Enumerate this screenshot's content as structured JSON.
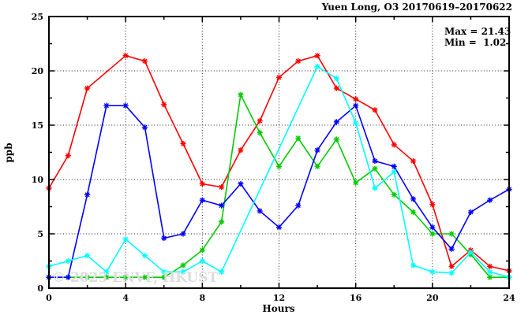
{
  "header": {
    "title": "Yuen Long, O3 20170619–20170622"
  },
  "annotation": {
    "max_label": "Max = 21.43",
    "min_label": "Min =  1.02"
  },
  "watermark": "© 2025 ENVF, HKUST",
  "colors": {
    "red": "#ff0000",
    "green": "#00cc00",
    "blue": "#0000ff",
    "cyan": "#00ffff",
    "grid": "#222222",
    "watermark": "#dcdcdc"
  },
  "chart_data": {
    "type": "line",
    "title": "Yuen Long, O3 20170619–20170622",
    "xlabel": "Hours",
    "ylabel": "ppb",
    "xlim": [
      0,
      24
    ],
    "ylim": [
      0,
      25
    ],
    "grid": true,
    "legend_position": "none",
    "stats": {
      "max": 21.43,
      "min": 1.02
    },
    "x_major_ticks": [
      0,
      4,
      8,
      12,
      16,
      20,
      24
    ],
    "x_minor_ticks": [
      2,
      6,
      10,
      14,
      18,
      22
    ],
    "y_major_ticks": [
      0,
      5,
      10,
      15,
      20,
      25
    ],
    "y_minor_ticks": [
      2.5,
      7.5,
      12.5,
      17.5,
      22.5
    ],
    "x": [
      0,
      1,
      2,
      3,
      4,
      5,
      6,
      7,
      8,
      9,
      10,
      11,
      12,
      13,
      14,
      15,
      16,
      17,
      18,
      19,
      20,
      21,
      22,
      23,
      24
    ],
    "series": [
      {
        "name": "series-red",
        "color": "#ff0000",
        "marker": "asterisk",
        "values": [
          9.2,
          12.2,
          18.4,
          null,
          21.4,
          20.9,
          16.9,
          13.3,
          9.6,
          9.3,
          12.7,
          15.4,
          19.4,
          20.9,
          21.4,
          18.4,
          17.4,
          16.4,
          13.2,
          11.7,
          7.7,
          2.0,
          3.5,
          2.0,
          1.6
        ]
      },
      {
        "name": "series-green",
        "color": "#00cc00",
        "marker": "asterisk",
        "values": [
          1.0,
          1.0,
          1.0,
          1.0,
          1.0,
          1.0,
          1.0,
          2.1,
          3.5,
          6.1,
          17.8,
          14.3,
          11.2,
          13.8,
          11.2,
          13.7,
          9.7,
          11.0,
          8.6,
          7.0,
          5.0,
          5.0,
          3.1,
          1.0,
          1.0
        ]
      },
      {
        "name": "series-blue",
        "color": "#0000ff",
        "marker": "asterisk",
        "values": [
          1.0,
          1.0,
          8.6,
          16.8,
          16.8,
          14.8,
          4.6,
          5.0,
          8.1,
          7.6,
          9.6,
          7.1,
          5.6,
          7.6,
          12.7,
          15.3,
          16.8,
          11.7,
          11.2,
          8.2,
          5.6,
          3.6,
          7.0,
          8.1,
          9.1
        ]
      },
      {
        "name": "series-cyan",
        "color": "#00ffff",
        "marker": "asterisk",
        "values": [
          2.0,
          2.5,
          3.0,
          1.5,
          4.5,
          3.0,
          1.5,
          1.5,
          2.5,
          1.5,
          null,
          null,
          null,
          null,
          20.4,
          19.3,
          15.2,
          9.2,
          10.7,
          2.1,
          1.5,
          1.4,
          3.3,
          1.5,
          1.0
        ]
      }
    ]
  }
}
